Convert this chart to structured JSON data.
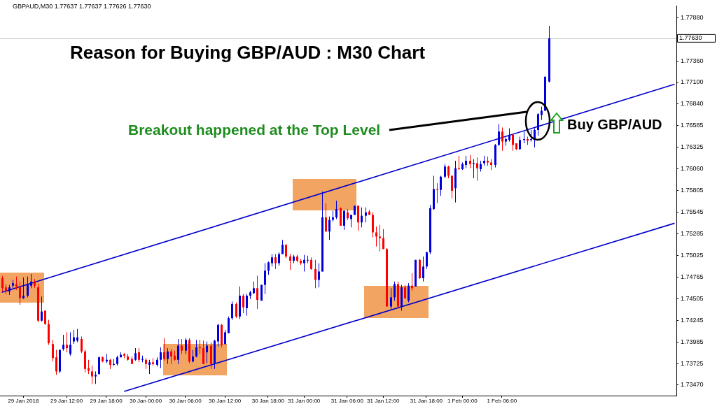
{
  "chart_data": {
    "type": "candlestick",
    "title": "Reason for Buying GBP/AUD : M30 Chart",
    "annotations": [
      "GBPAUD,M30  1.77637 1.77637 1.77626 1.77630",
      "Breakout happened at the Top Level",
      "Buy GBP/AUD"
    ],
    "categories": [
      null,
      null,
      null,
      null,
      null,
      null,
      "29 Jan 2018",
      null,
      null,
      null,
      null,
      null,
      null,
      null,
      null,
      null,
      null,
      null,
      "29 Jan 12:00",
      null,
      null,
      null,
      null,
      null,
      null,
      null,
      null,
      null,
      null,
      "29 Jan 18:00",
      null,
      null,
      null,
      null,
      null,
      null,
      null,
      null,
      null,
      null,
      "30 Jan 00:00",
      null,
      null,
      null,
      null,
      null,
      null,
      null,
      null,
      null,
      null,
      "30 Jan 06:00",
      null,
      null,
      null,
      null,
      null,
      null,
      null,
      null,
      null,
      null,
      "30 Jan 12:00",
      null,
      null,
      null,
      null,
      null,
      null,
      null,
      null,
      null,
      null,
      null,
      "30 Jan 18:00",
      null,
      null,
      null,
      null,
      null,
      null,
      null,
      null,
      null,
      "31 Jan 00:00",
      null,
      null,
      null,
      null,
      null,
      null,
      null,
      null,
      null,
      null,
      null,
      "31 Jan 06:00",
      null,
      null,
      null,
      null,
      null,
      null,
      null,
      null,
      null,
      "31 Jan 12:00",
      null,
      null,
      null,
      null,
      null,
      null,
      null,
      null,
      null,
      null,
      null,
      "31 Jan 18:00",
      null,
      null,
      null,
      null,
      null,
      null,
      null,
      null,
      null,
      "1 Feb 00:00",
      null,
      null,
      null,
      null,
      null,
      null,
      null,
      null,
      null,
      null,
      "1 Feb 06:00",
      null,
      null,
      null,
      null,
      null,
      null,
      null,
      null,
      null,
      null,
      null,
      null,
      null,
      null,
      null,
      null,
      null,
      null,
      null,
      null,
      null,
      null,
      null,
      null,
      null,
      null,
      null,
      null,
      null,
      null,
      null,
      null,
      null,
      null,
      null,
      null,
      null,
      null,
      null,
      null,
      null,
      null,
      null,
      null,
      null,
      null,
      null,
      null
    ],
    "ohlc": [
      [
        1.7475,
        1.7478,
        1.7459,
        1.7463
      ],
      [
        1.7464,
        1.7468,
        1.7456,
        1.746
      ],
      [
        1.7459,
        1.7467,
        1.7455,
        1.7464
      ],
      [
        1.7466,
        1.7473,
        1.7463,
        1.7469
      ],
      [
        1.7468,
        1.7477,
        1.7461,
        1.7465
      ],
      [
        1.7464,
        1.7471,
        1.7443,
        1.7451
      ],
      [
        1.7451,
        1.7476,
        1.745,
        1.7454
      ],
      [
        1.7454,
        1.7477,
        1.7452,
        1.7467
      ],
      [
        1.7466,
        1.748,
        1.7463,
        1.7471
      ],
      [
        1.7471,
        1.7474,
        1.7463,
        1.7466
      ],
      [
        1.7464,
        1.7468,
        1.7422,
        1.7424
      ],
      [
        1.7424,
        1.7453,
        1.7423,
        1.7435
      ],
      [
        1.7436,
        1.7436,
        1.7419,
        1.742
      ],
      [
        1.742,
        1.7425,
        1.7395,
        1.7397
      ],
      [
        1.7396,
        1.7401,
        1.7375,
        1.7379
      ],
      [
        1.738,
        1.7389,
        1.7359,
        1.7363
      ],
      [
        1.7363,
        1.7389,
        1.7361,
        1.7389
      ],
      [
        1.739,
        1.7407,
        1.7388,
        1.7395
      ],
      [
        1.7395,
        1.741,
        1.7386,
        1.7391
      ],
      [
        1.7384,
        1.741,
        1.7382,
        1.7395
      ],
      [
        1.7399,
        1.7413,
        1.7396,
        1.7404
      ],
      [
        1.74,
        1.7414,
        1.7398,
        1.7404
      ],
      [
        1.7402,
        1.7405,
        1.7385,
        1.7387
      ],
      [
        1.7387,
        1.7389,
        1.7362,
        1.7366
      ],
      [
        1.7367,
        1.7377,
        1.736,
        1.7364
      ],
      [
        1.7363,
        1.737,
        1.7348,
        1.7357
      ],
      [
        1.7357,
        1.7363,
        1.7348,
        1.7359
      ],
      [
        1.736,
        1.7381,
        1.7359,
        1.738
      ],
      [
        1.738,
        1.7381,
        1.7374,
        1.7375
      ],
      [
        1.7375,
        1.7384,
        1.7373,
        1.7377
      ],
      [
        1.7377,
        1.7378,
        1.7366,
        1.7371
      ],
      [
        1.7371,
        1.7378,
        1.737,
        1.7372
      ],
      [
        1.7372,
        1.7382,
        1.737,
        1.738
      ],
      [
        1.738,
        1.7386,
        1.738,
        1.7383
      ],
      [
        1.7384,
        1.7385,
        1.7379,
        1.7382
      ],
      [
        1.7381,
        1.7384,
        1.7376,
        1.7377
      ],
      [
        1.7378,
        1.7381,
        1.7372,
        1.7372
      ],
      [
        1.7377,
        1.7391,
        1.7376,
        1.7385
      ],
      [
        1.7386,
        1.7391,
        1.7374,
        1.7377
      ],
      [
        1.7377,
        1.7382,
        1.7374,
        1.7378
      ],
      [
        1.7377,
        1.7379,
        1.7366,
        1.7372
      ],
      [
        1.7371,
        1.7377,
        1.736,
        1.7374
      ],
      [
        1.7374,
        1.7379,
        1.737,
        1.7372
      ],
      [
        1.7371,
        1.738,
        1.7369,
        1.7377
      ],
      [
        1.7377,
        1.7392,
        1.7367,
        1.7386
      ],
      [
        1.7386,
        1.7403,
        1.7376,
        1.7378
      ],
      [
        1.7378,
        1.7391,
        1.7372,
        1.7387
      ],
      [
        1.7387,
        1.739,
        1.7372,
        1.7381
      ],
      [
        1.7382,
        1.7388,
        1.7376,
        1.7377
      ],
      [
        1.7377,
        1.7402,
        1.7372,
        1.7394
      ],
      [
        1.7394,
        1.7402,
        1.7384,
        1.7388
      ],
      [
        1.7388,
        1.7403,
        1.7384,
        1.7401
      ],
      [
        1.7401,
        1.7403,
        1.7373,
        1.7375
      ],
      [
        1.7375,
        1.7389,
        1.7374,
        1.7381
      ],
      [
        1.7381,
        1.7401,
        1.738,
        1.7392
      ],
      [
        1.7392,
        1.7401,
        1.7384,
        1.7391
      ],
      [
        1.7391,
        1.74,
        1.7372,
        1.7372
      ],
      [
        1.7386,
        1.7399,
        1.7373,
        1.7394
      ],
      [
        1.7394,
        1.7398,
        1.7366,
        1.7372
      ],
      [
        1.7373,
        1.7401,
        1.7366,
        1.74
      ],
      [
        1.7399,
        1.742,
        1.7393,
        1.7419
      ],
      [
        1.7419,
        1.742,
        1.7392,
        1.7395
      ],
      [
        1.7396,
        1.7413,
        1.7395,
        1.741
      ],
      [
        1.7409,
        1.7429,
        1.7409,
        1.7427
      ],
      [
        1.7427,
        1.7447,
        1.7425,
        1.7444
      ],
      [
        1.7444,
        1.7446,
        1.7427,
        1.7429
      ],
      [
        1.7429,
        1.7465,
        1.7426,
        1.7454
      ],
      [
        1.7454,
        1.7456,
        1.7433,
        1.744
      ],
      [
        1.7439,
        1.7456,
        1.743,
        1.7454
      ],
      [
        1.7454,
        1.746,
        1.745,
        1.7458
      ],
      [
        1.7457,
        1.7471,
        1.7456,
        1.7463
      ],
      [
        1.7463,
        1.7478,
        1.7438,
        1.7449
      ],
      [
        1.7448,
        1.7467,
        1.7448,
        1.7467
      ],
      [
        1.7467,
        1.7493,
        1.7456,
        1.7484
      ],
      [
        1.7484,
        1.7495,
        1.7479,
        1.7494
      ],
      [
        1.7493,
        1.7504,
        1.7489,
        1.75
      ],
      [
        1.75,
        1.7504,
        1.7486,
        1.7493
      ],
      [
        1.7493,
        1.7506,
        1.749,
        1.7504
      ],
      [
        1.7504,
        1.7521,
        1.7504,
        1.7515
      ],
      [
        1.7515,
        1.7516,
        1.7499,
        1.7501
      ],
      [
        1.7501,
        1.7504,
        1.7485,
        1.7496
      ],
      [
        1.7496,
        1.7503,
        1.7493,
        1.7501
      ],
      [
        1.7501,
        1.7503,
        1.7494,
        1.7496
      ],
      [
        1.7496,
        1.7498,
        1.7491,
        1.7493
      ],
      [
        1.7493,
        1.7503,
        1.7483,
        1.7497
      ],
      [
        1.7497,
        1.7502,
        1.7493,
        1.7497
      ],
      [
        1.7497,
        1.75,
        1.7485,
        1.7486
      ],
      [
        1.7486,
        1.7497,
        1.7463,
        1.7473
      ],
      [
        1.7473,
        1.7493,
        1.7464,
        1.7483
      ],
      [
        1.7483,
        1.7579,
        1.7483,
        1.7548
      ],
      [
        1.7548,
        1.7565,
        1.7531,
        1.7531
      ],
      [
        1.7531,
        1.7549,
        1.7521,
        1.7545
      ],
      [
        1.7545,
        1.7556,
        1.7543,
        1.7548
      ],
      [
        1.7548,
        1.7568,
        1.7546,
        1.7558
      ],
      [
        1.7559,
        1.756,
        1.7538,
        1.7538
      ],
      [
        1.7538,
        1.7556,
        1.7533,
        1.7556
      ],
      [
        1.7554,
        1.7558,
        1.7545,
        1.7547
      ],
      [
        1.7546,
        1.7551,
        1.7536,
        1.7551
      ],
      [
        1.7551,
        1.7562,
        1.7551,
        1.7562
      ],
      [
        1.7562,
        1.7562,
        1.7532,
        1.7542
      ],
      [
        1.7542,
        1.756,
        1.7536,
        1.755
      ],
      [
        1.755,
        1.756,
        1.7542,
        1.7554
      ],
      [
        1.7555,
        1.7557,
        1.7551,
        1.7551
      ],
      [
        1.7551,
        1.7554,
        1.7524,
        1.753
      ],
      [
        1.753,
        1.7537,
        1.7513,
        1.7525
      ],
      [
        1.7525,
        1.7539,
        1.7507,
        1.7523
      ],
      [
        1.7523,
        1.7534,
        1.751,
        1.751
      ],
      [
        1.751,
        1.7511,
        1.7441,
        1.7441
      ],
      [
        1.7441,
        1.7463,
        1.7438,
        1.7452
      ],
      [
        1.7452,
        1.7471,
        1.7448,
        1.7468
      ],
      [
        1.7468,
        1.7471,
        1.744,
        1.7441
      ],
      [
        1.7441,
        1.7467,
        1.7436,
        1.7464
      ],
      [
        1.7464,
        1.7467,
        1.745,
        1.7451
      ],
      [
        1.7448,
        1.7469,
        1.7446,
        1.7466
      ],
      [
        1.7466,
        1.7481,
        1.746,
        1.7463
      ],
      [
        1.7465,
        1.7497,
        1.7465,
        1.7497
      ],
      [
        1.7497,
        1.7498,
        1.7474,
        1.7475
      ],
      [
        1.7475,
        1.7501,
        1.7471,
        1.7489
      ],
      [
        1.7489,
        1.7507,
        1.7486,
        1.7506
      ],
      [
        1.7506,
        1.7563,
        1.7504,
        1.7559
      ],
      [
        1.7558,
        1.7598,
        1.7557,
        1.7582
      ],
      [
        1.7582,
        1.7589,
        1.7565,
        1.7581
      ],
      [
        1.7581,
        1.7598,
        1.7574,
        1.7597
      ],
      [
        1.7597,
        1.7612,
        1.7595,
        1.7609
      ],
      [
        1.7609,
        1.761,
        1.7595,
        1.7598
      ],
      [
        1.7598,
        1.7598,
        1.7571,
        1.758
      ],
      [
        1.7583,
        1.7616,
        1.7566,
        1.7607
      ],
      [
        1.7607,
        1.7622,
        1.7605,
        1.7606
      ],
      [
        1.7606,
        1.7614,
        1.7605,
        1.7612
      ],
      [
        1.7611,
        1.7622,
        1.7607,
        1.7616
      ],
      [
        1.7616,
        1.7623,
        1.7607,
        1.7612
      ],
      [
        1.7612,
        1.7618,
        1.7595,
        1.7613
      ],
      [
        1.7613,
        1.762,
        1.7592,
        1.7607
      ],
      [
        1.7606,
        1.7616,
        1.7603,
        1.7612
      ],
      [
        1.7613,
        1.7622,
        1.761,
        1.7616
      ],
      [
        1.7616,
        1.7621,
        1.761,
        1.7614
      ],
      [
        1.7614,
        1.7618,
        1.7605,
        1.7611
      ],
      [
        1.7611,
        1.7636,
        1.7608,
        1.7635
      ],
      [
        1.7635,
        1.766,
        1.7634,
        1.7651
      ],
      [
        1.7651,
        1.7656,
        1.7628,
        1.7639
      ],
      [
        1.7639,
        1.7644,
        1.7634,
        1.7642
      ],
      [
        1.7641,
        1.7655,
        1.7639,
        1.7647
      ],
      [
        1.7647,
        1.7648,
        1.7628,
        1.7635
      ],
      [
        1.7637,
        1.7637,
        1.7629,
        1.763
      ],
      [
        1.763,
        1.7645,
        1.7629,
        1.7641
      ],
      [
        1.7641,
        1.7651,
        1.7637,
        1.7642
      ],
      [
        1.7642,
        1.7645,
        1.7635,
        1.764
      ],
      [
        1.7641,
        1.7653,
        1.7639,
        1.7642
      ],
      [
        1.7641,
        1.7655,
        1.7632,
        1.7653
      ],
      [
        1.7653,
        1.7673,
        1.7646,
        1.7672
      ],
      [
        1.7671,
        1.7681,
        1.7665,
        1.7676
      ],
      [
        1.7676,
        1.7717,
        1.7676,
        1.7717
      ],
      [
        1.7711,
        1.7778,
        1.771,
        1.7763
      ],
      null,
      null,
      null,
      null,
      null,
      null,
      null,
      null,
      null,
      null,
      null,
      null,
      null,
      null,
      null,
      null,
      null,
      null,
      null,
      null,
      null,
      null,
      null,
      null,
      null,
      null,
      null,
      null,
      null,
      null,
      null,
      null,
      null,
      null,
      null
    ],
    "colors": [
      "#ff0000",
      "#ff0000",
      "#0000dd",
      "#0000dd",
      "#ff0000",
      "#ff0000",
      "#0000dd",
      "#0000dd",
      "#0000dd",
      "#ff0000",
      "#ff0000",
      "#0000dd",
      "#ff0000",
      "#ff0000",
      "#ff0000",
      "#ff0000",
      "#0000dd",
      "#0000dd",
      "#ff0000",
      "#0000dd",
      "#0000dd",
      "#0000dd",
      "#ff0000",
      "#ff0000",
      "#ff0000",
      "#ff0000",
      "#0000dd",
      "#0000dd",
      "#ff0000",
      "#0000dd",
      "#ff0000",
      "#0000dd",
      "#0000dd",
      "#0000dd",
      "#ff0000",
      "#ff0000",
      "#ff0000",
      "#0000dd",
      "#ff0000",
      "#0000dd",
      "#ff0000",
      "#0000dd",
      "#ff0000",
      "#0000dd",
      "#0000dd",
      "#ff0000",
      "#0000dd",
      "#ff0000",
      "#ff0000",
      "#0000dd",
      "#ff0000",
      "#0000dd",
      "#ff0000",
      "#0000dd",
      "#0000dd",
      "#ff0000",
      "#ff0000",
      "#0000dd",
      "#ff0000",
      "#0000dd",
      "#0000dd",
      "#ff0000",
      "#0000dd",
      "#0000dd",
      "#0000dd",
      "#ff0000",
      "#0000dd",
      "#ff0000",
      "#0000dd",
      "#0000dd",
      "#0000dd",
      "#ff0000",
      "#0000dd",
      "#0000dd",
      "#0000dd",
      "#0000dd",
      "#ff0000",
      "#0000dd",
      "#0000dd",
      "#ff0000",
      "#ff0000",
      "#0000dd",
      "#ff0000",
      "#ff0000",
      "#0000dd",
      "#0000dd",
      "#ff0000",
      "#ff0000",
      "#0000dd",
      "#0000dd",
      "#ff0000",
      "#0000dd",
      "#0000dd",
      "#0000dd",
      "#ff0000",
      "#0000dd",
      "#ff0000",
      "#0000dd",
      "#0000dd",
      "#ff0000",
      "#0000dd",
      "#0000dd",
      "#ff0000",
      "#ff0000",
      "#ff0000",
      "#ff0000",
      "#ff0000",
      "#ff0000",
      "#0000dd",
      "#0000dd",
      "#ff0000",
      "#0000dd",
      "#ff0000",
      "#0000dd",
      "#ff0000",
      "#0000dd",
      "#ff0000",
      "#0000dd",
      "#0000dd",
      "#0000dd",
      "#0000dd",
      "#ff0000",
      "#0000dd",
      "#0000dd",
      "#ff0000",
      "#ff0000",
      "#0000dd",
      "#ff0000",
      "#0000dd",
      "#0000dd",
      "#ff0000",
      "#0000dd",
      "#ff0000",
      "#0000dd",
      "#0000dd",
      "#ff0000",
      "#ff0000",
      "#0000dd",
      "#0000dd",
      "#ff0000",
      "#0000dd",
      "#0000dd",
      "#ff0000",
      "#ff0000",
      "#0000dd",
      "#0000dd",
      "#ff0000",
      "#0000dd",
      "#0000dd",
      "#0000dd",
      "#0000dd",
      "#0000dd",
      "#0000dd",
      null,
      null,
      null,
      null,
      null,
      null,
      null,
      null,
      null,
      null,
      null,
      null,
      null,
      null,
      null,
      null,
      null,
      null,
      null,
      null,
      null,
      null,
      null,
      null,
      null,
      null,
      null,
      null,
      null,
      null,
      null,
      null,
      null,
      null,
      null
    ],
    "series": [
      {
        "type": "line",
        "color": "#0000cc",
        "values": [
          1.7458,
          null,
          null,
          null,
          null,
          null,
          null,
          null,
          null,
          null,
          null,
          null,
          null,
          null,
          null,
          null,
          null,
          null,
          null,
          null,
          null,
          null,
          null,
          null,
          null,
          null,
          null,
          null,
          null,
          null,
          null,
          null,
          null,
          null,
          null,
          null,
          null,
          null,
          null,
          null,
          null,
          null,
          null,
          null,
          null,
          null,
          null,
          null,
          null,
          null,
          null,
          null,
          null,
          null,
          null,
          null,
          null,
          null,
          null,
          null,
          null,
          null,
          null,
          null,
          null,
          null,
          null,
          null,
          null,
          null,
          null,
          null,
          null,
          null,
          null,
          null,
          null,
          null,
          null,
          null,
          null,
          null,
          null,
          null,
          null,
          null,
          null,
          null,
          null,
          null,
          null,
          null,
          null,
          null,
          null,
          null,
          null,
          null,
          null,
          null,
          null,
          null,
          null,
          null,
          null,
          null,
          null,
          null,
          null,
          null,
          null,
          null,
          null,
          null,
          null,
          null,
          null,
          null,
          null,
          null,
          null,
          null,
          null,
          null,
          null,
          null,
          null,
          null,
          null,
          null,
          null,
          null,
          null,
          null,
          null,
          null,
          null,
          null,
          null,
          null,
          null,
          null,
          null,
          null,
          null,
          null,
          null,
          null,
          null,
          null,
          null,
          null,
          null,
          null,
          null,
          null,
          null,
          null,
          null,
          null,
          null,
          null,
          null,
          null,
          null,
          null,
          null,
          null,
          null,
          null,
          null,
          null,
          null,
          null,
          null,
          null,
          null,
          null,
          null,
          null,
          null,
          null,
          null,
          null,
          null,
          null,
          null,
          1.7708
        ]
      },
      {
        "type": "line",
        "color": "#0000cc",
        "values": [
          null,
          null,
          null,
          null,
          null,
          null,
          null,
          null,
          null,
          null,
          null,
          null,
          null,
          null,
          null,
          null,
          null,
          null,
          null,
          null,
          null,
          null,
          null,
          null,
          null,
          null,
          null,
          null,
          null,
          null,
          null,
          null,
          null,
          null,
          1.7339,
          null,
          null,
          null,
          null,
          null,
          null,
          null,
          null,
          null,
          null,
          null,
          null,
          null,
          null,
          null,
          null,
          null,
          null,
          null,
          null,
          null,
          null,
          null,
          null,
          null,
          null,
          null,
          null,
          null,
          null,
          null,
          null,
          null,
          null,
          null,
          null,
          null,
          null,
          null,
          null,
          null,
          null,
          null,
          null,
          null,
          null,
          null,
          null,
          null,
          null,
          null,
          null,
          null,
          null,
          null,
          null,
          null,
          null,
          null,
          null,
          null,
          null,
          null,
          null,
          null,
          null,
          null,
          null,
          null,
          null,
          null,
          null,
          null,
          null,
          null,
          null,
          null,
          null,
          null,
          null,
          null,
          null,
          null,
          null,
          null,
          null,
          null,
          null,
          null,
          null,
          null,
          null,
          null,
          null,
          null,
          null,
          null,
          null,
          null,
          null,
          null,
          null,
          null,
          null,
          null,
          null,
          null,
          null,
          null,
          null,
          null,
          null,
          null,
          null,
          null,
          null,
          null,
          null,
          null,
          null,
          null,
          null,
          null,
          null,
          null,
          null,
          null,
          null,
          null,
          null,
          null,
          null,
          null,
          null,
          null,
          null,
          null,
          null,
          null,
          null,
          null,
          null,
          null,
          null,
          null,
          null,
          null,
          null,
          null,
          null,
          null,
          null,
          1.7541
        ]
      }
    ],
    "ylim": [
      1.7334,
      1.7802
    ],
    "yticks": [
      {
        "value": 1.7347,
        "label": "1.73470"
      },
      {
        "value": 1.73725,
        "label": "1.73725"
      },
      {
        "value": 1.73985,
        "label": "1.73985"
      },
      {
        "value": 1.74245,
        "label": "1.74245"
      },
      {
        "value": 1.74505,
        "label": "1.74505"
      },
      {
        "value": 1.74765,
        "label": "1.74765"
      },
      {
        "value": 1.75025,
        "label": "1.75025"
      },
      {
        "value": 1.75285,
        "label": "1.75285"
      },
      {
        "value": 1.75545,
        "label": "1.75545"
      },
      {
        "value": 1.75805,
        "label": "1.75805"
      },
      {
        "value": 1.7606,
        "label": "1.76060"
      },
      {
        "value": 1.76325,
        "label": "1.76325"
      },
      {
        "value": 1.76585,
        "label": "1.76585"
      },
      {
        "value": 1.7684,
        "label": "1.76840"
      },
      {
        "value": 1.771,
        "label": "1.77100"
      },
      {
        "value": 1.7736,
        "label": "1.77360"
      },
      {
        "value": 1.7788,
        "label": "1.77880"
      }
    ],
    "ref_lines": [
      {
        "axis": "y",
        "value": 1.7763,
        "label": "1.77630",
        "color": "#c0c0c0"
      }
    ]
  }
}
